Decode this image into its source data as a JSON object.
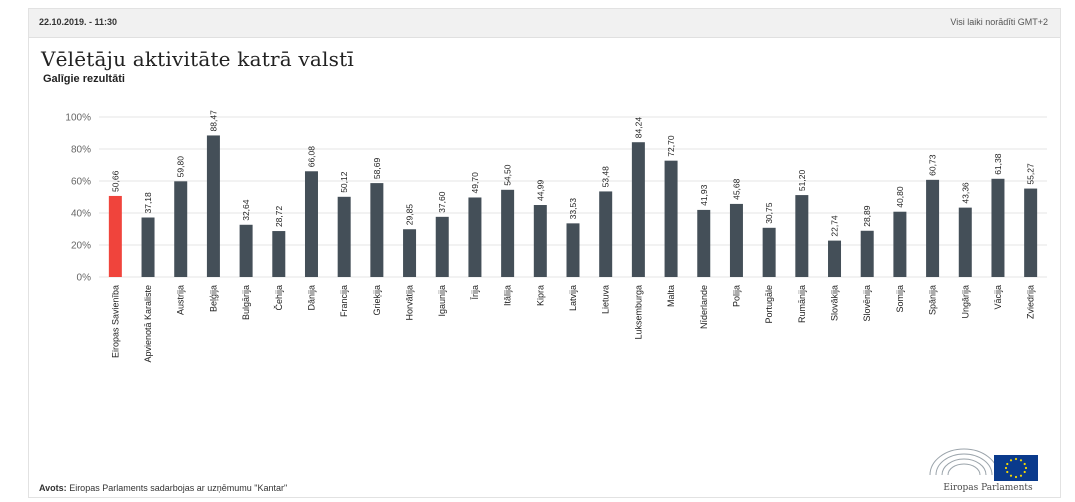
{
  "header": {
    "datetime": "22.10.2019. - 11:30",
    "timezone_note": "Visi laiki norādīti GMT+2"
  },
  "title": "Vēlētāju aktivitāte katrā valstī",
  "subtitle": "Galīgie rezultāti",
  "source_label": "Avots:",
  "source_text": "Eiropas Parlaments sadarbojas ar uzņēmumu \"Kantar\"",
  "logo_text": "Eiropas Parlaments",
  "colors": {
    "highlight": "#f0443c",
    "bar": "#444f58",
    "grid": "#e6e6e6"
  },
  "chart_data": {
    "type": "bar",
    "categories": [
      "Eiropas Savienība",
      "Apvienotā Karaliste",
      "Austrija",
      "Beļģija",
      "Bulgārija",
      "Čehija",
      "Dānija",
      "Francija",
      "Grieķija",
      "Horvātija",
      "Igaunija",
      "Īrija",
      "Itālija",
      "Kipra",
      "Latvija",
      "Lietuva",
      "Luksemburga",
      "Malta",
      "Nīderlande",
      "Polija",
      "Portugāle",
      "Rumānija",
      "Slovākija",
      "Slovēnija",
      "Somija",
      "Spānija",
      "Ungārija",
      "Vācija",
      "Zviedrija"
    ],
    "values": [
      50.66,
      37.18,
      59.8,
      88.47,
      32.64,
      28.72,
      66.08,
      50.12,
      58.69,
      29.85,
      37.6,
      49.7,
      54.5,
      44.99,
      33.53,
      53.48,
      84.24,
      72.7,
      41.93,
      45.68,
      30.75,
      51.2,
      22.74,
      28.89,
      40.8,
      60.73,
      43.36,
      61.38,
      55.27
    ],
    "value_labels": [
      "50,66",
      "37,18",
      "59,80",
      "88,47",
      "32,64",
      "28,72",
      "66,08",
      "50,12",
      "58,69",
      "29,85",
      "37,60",
      "49,70",
      "54,50",
      "44,99",
      "33,53",
      "53,48",
      "84,24",
      "72,70",
      "41,93",
      "45,68",
      "30,75",
      "51,20",
      "22,74",
      "28,89",
      "40,80",
      "60,73",
      "43,36",
      "61,38",
      "55,27"
    ],
    "yticks": [
      0,
      20,
      40,
      60,
      80,
      100
    ],
    "ytick_labels": [
      "0%",
      "20%",
      "40%",
      "60%",
      "80%",
      "100%"
    ],
    "ylim": [
      0,
      100
    ],
    "highlight_index": 0,
    "grid": true,
    "xlabel": "",
    "ylabel": ""
  }
}
